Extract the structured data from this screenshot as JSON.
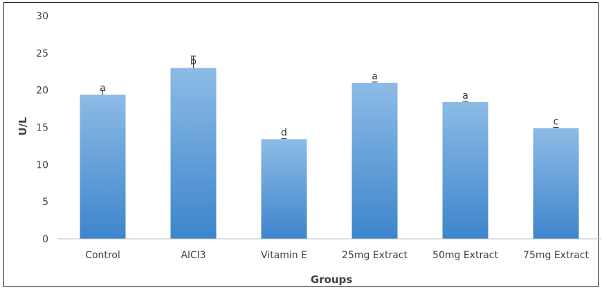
{
  "chart_data": {
    "type": "bar",
    "title": "",
    "xlabel": "Groups",
    "ylabel": "U/L",
    "ylim": [
      0,
      30
    ],
    "yticks": [
      0,
      5,
      10,
      15,
      20,
      25,
      30
    ],
    "grid": false,
    "categories": [
      "Control",
      "AlCl3",
      "Vitamin E",
      "25mg Extract",
      "50mg Extract",
      "75mg Extract"
    ],
    "values": [
      19.4,
      23.0,
      13.4,
      21.0,
      18.4,
      14.9
    ],
    "error": [
      0.6,
      1.6,
      0.1,
      0.1,
      0.1,
      0.1
    ],
    "labels": [
      "a",
      "b",
      "d",
      "a",
      "a",
      "c"
    ],
    "colors": {
      "bar_top": "#8dbbe6",
      "bar_bottom": "#3d85cc",
      "error": "#333333",
      "axis": "#bfbfbf"
    }
  }
}
